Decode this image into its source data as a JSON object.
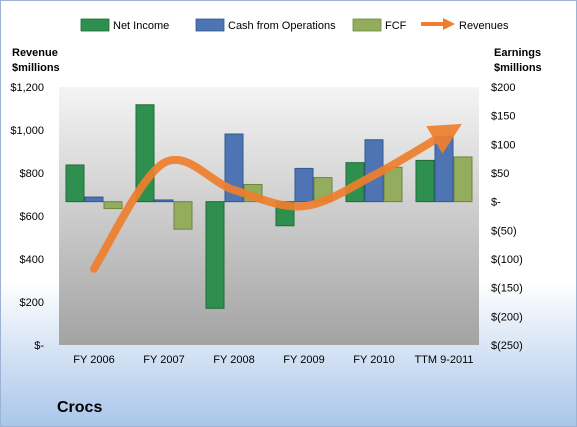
{
  "company_label": "Crocs",
  "colors": {
    "net_income": "#2f8f4f",
    "cash_from_operations": "#4f74b3",
    "fcf": "#93ac5e",
    "revenues": "#ef7f2d"
  },
  "chart_data": {
    "type": "bar",
    "categories": [
      "FY 2006",
      "FY 2007",
      "FY 2008",
      "FY 2009",
      "FY 2010",
      "TTM 9-2011"
    ],
    "left_axis": {
      "title_lines": [
        "Revenue",
        "$millions"
      ],
      "ylim": [
        0,
        1200
      ],
      "ticks": [
        "$-",
        "$200",
        "$400",
        "$600",
        "$800",
        "$1,000",
        "$1,200"
      ]
    },
    "right_axis": {
      "title_lines": [
        "Earnings",
        "$millions"
      ],
      "ylim": [
        -250,
        200
      ],
      "ticks": [
        "$(250)",
        "$(200)",
        "$(150)",
        "$(100)",
        "$(50)",
        "$-",
        "$50",
        "$100",
        "$150",
        "$200"
      ]
    },
    "legend": {
      "position": "top",
      "items": [
        "Net Income",
        "Cash from Operations",
        "FCF",
        "Revenues"
      ]
    },
    "bar_series": [
      {
        "name": "Net Income",
        "axis": "right",
        "values": [
          64,
          169,
          -186,
          -42,
          68,
          72
        ]
      },
      {
        "name": "Cash from Operations",
        "axis": "right",
        "values": [
          8,
          3,
          118,
          58,
          108,
          114
        ]
      },
      {
        "name": "FCF",
        "axis": "right",
        "values": [
          -12,
          -48,
          30,
          42,
          60,
          78
        ]
      }
    ],
    "line_series": [
      {
        "name": "Revenues",
        "axis": "left",
        "values": [
          355,
          847,
          721,
          646,
          790,
          980
        ]
      }
    ],
    "grid": false
  }
}
